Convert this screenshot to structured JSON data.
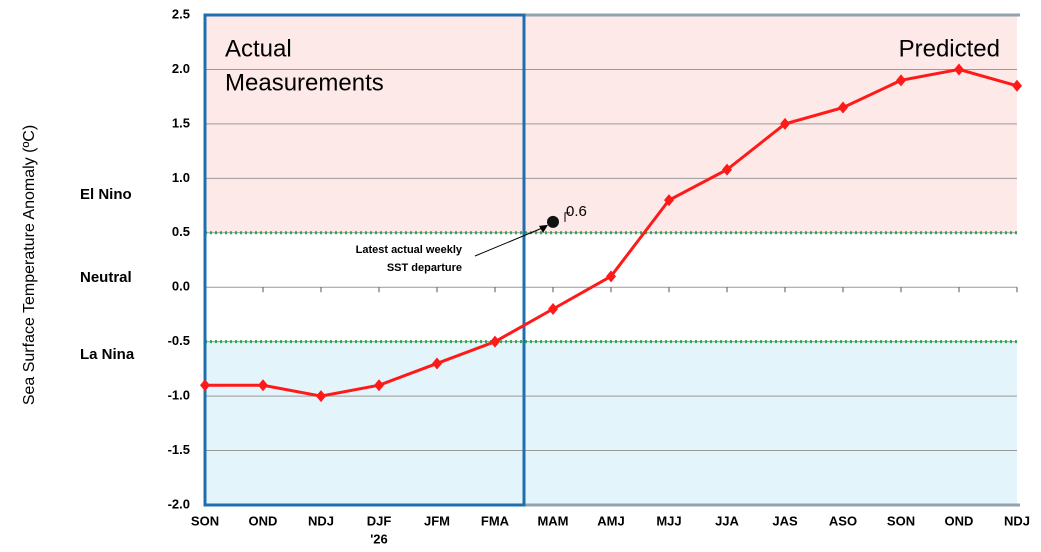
{
  "chart_data": {
    "type": "line",
    "y_label": "Sea Surface Temperature Anomaly (ºC)",
    "categories": [
      "SON",
      "OND",
      "NDJ",
      "DJF",
      "JFM",
      "FMA",
      "MAM",
      "AMJ",
      "MJJ",
      "JJA",
      "JAS",
      "ASO",
      "SON",
      "OND",
      "NDJ"
    ],
    "year_marker": "'26",
    "series": [
      {
        "name": "SST anomaly",
        "color": "#ff1a1a",
        "values": [
          -0.9,
          -0.9,
          -1.0,
          -0.9,
          -0.7,
          -0.5,
          -0.2,
          0.1,
          0.8,
          1.08,
          1.5,
          1.65,
          1.9,
          2.0,
          1.85
        ]
      }
    ],
    "ylim": [
      -2.0,
      2.5
    ],
    "yticks": [
      {
        "value": -2.0,
        "label": "-2.0"
      },
      {
        "value": -1.5,
        "label": "-1.5"
      },
      {
        "value": -1.0,
        "label": "-1.0"
      },
      {
        "value": -0.5,
        "label": "-0.5"
      },
      {
        "value": 0.0,
        "label": "0.0"
      },
      {
        "value": 0.5,
        "label": "0.5"
      },
      {
        "value": 1.0,
        "label": "1.0"
      },
      {
        "value": 1.5,
        "label": "1.5"
      },
      {
        "value": 2.0,
        "label": "2.0"
      },
      {
        "value": 2.5,
        "label": "2.5"
      }
    ],
    "grid": true,
    "thresholds": [
      -0.5,
      0.5
    ],
    "regions": [
      "El Nino",
      "Neutral",
      "La Nina"
    ],
    "actual_label": [
      "Actual",
      "Measurements"
    ],
    "predicted_label": "Predicted",
    "latest": {
      "value": 0.6,
      "value_label": "0.6",
      "text": [
        "Latest actual weekly",
        "SST departure"
      ]
    }
  }
}
